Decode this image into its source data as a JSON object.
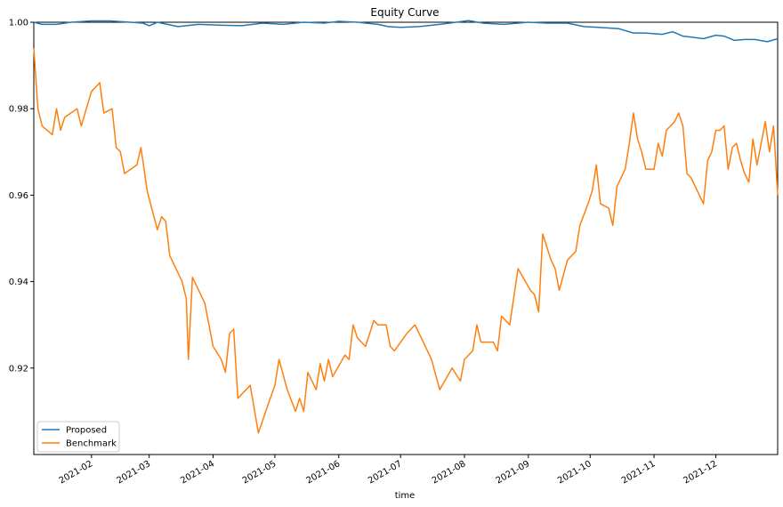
{
  "chart_data": {
    "type": "line",
    "title": "Equity Curve",
    "xlabel": "time",
    "ylabel": "",
    "x_range": [
      "2021-01-04",
      "2021-12-31"
    ],
    "ylim": [
      0.9,
      1.0
    ],
    "yticks": [
      0.92,
      0.94,
      0.96,
      0.98,
      1.0
    ],
    "ytick_labels": [
      "0.92",
      "0.94",
      "0.96",
      "0.98",
      "1.00"
    ],
    "xticks": [
      "2021-02-01",
      "2021-03-01",
      "2021-04-01",
      "2021-05-01",
      "2021-06-01",
      "2021-07-01",
      "2021-08-01",
      "2021-09-01",
      "2021-10-01",
      "2021-11-01",
      "2021-12-01"
    ],
    "xtick_labels": [
      "2021-02",
      "2021-03",
      "2021-04",
      "2021-05",
      "2021-06",
      "2021-07",
      "2021-08",
      "2021-09",
      "2021-10",
      "2021-11",
      "2021-12"
    ],
    "grid": false,
    "legend_position": "bottom-left",
    "series": [
      {
        "name": "Proposed",
        "color": "#1f77b4",
        "points": [
          [
            "2021-01-04",
            1.0
          ],
          [
            "2021-01-08",
            0.9995
          ],
          [
            "2021-01-15",
            0.9995
          ],
          [
            "2021-01-22",
            1.0
          ],
          [
            "2021-02-01",
            1.0003
          ],
          [
            "2021-02-10",
            1.0003
          ],
          [
            "2021-02-20",
            1.0
          ],
          [
            "2021-02-26",
            0.9998
          ],
          [
            "2021-03-01",
            0.9992
          ],
          [
            "2021-03-05",
            1.0
          ],
          [
            "2021-03-15",
            0.999
          ],
          [
            "2021-03-25",
            0.9995
          ],
          [
            "2021-04-05",
            0.9993
          ],
          [
            "2021-04-15",
            0.9992
          ],
          [
            "2021-04-25",
            0.9998
          ],
          [
            "2021-05-05",
            0.9995
          ],
          [
            "2021-05-15",
            1.0
          ],
          [
            "2021-05-25",
            0.9998
          ],
          [
            "2021-06-01",
            1.0002
          ],
          [
            "2021-06-10",
            1.0
          ],
          [
            "2021-06-20",
            0.9995
          ],
          [
            "2021-06-25",
            0.999
          ],
          [
            "2021-07-01",
            0.9988
          ],
          [
            "2021-07-10",
            0.999
          ],
          [
            "2021-07-20",
            0.9995
          ],
          [
            "2021-07-28",
            1.0
          ],
          [
            "2021-08-03",
            1.0004
          ],
          [
            "2021-08-10",
            0.9998
          ],
          [
            "2021-08-20",
            0.9995
          ],
          [
            "2021-09-01",
            1.0
          ],
          [
            "2021-09-10",
            0.9998
          ],
          [
            "2021-09-20",
            0.9998
          ],
          [
            "2021-09-28",
            0.999
          ],
          [
            "2021-10-05",
            0.9988
          ],
          [
            "2021-10-15",
            0.9985
          ],
          [
            "2021-10-22",
            0.9975
          ],
          [
            "2021-10-28",
            0.9975
          ],
          [
            "2021-11-05",
            0.9972
          ],
          [
            "2021-11-10",
            0.9978
          ],
          [
            "2021-11-15",
            0.9968
          ],
          [
            "2021-11-20",
            0.9965
          ],
          [
            "2021-11-25",
            0.9962
          ],
          [
            "2021-12-01",
            0.997
          ],
          [
            "2021-12-05",
            0.9968
          ],
          [
            "2021-12-10",
            0.9958
          ],
          [
            "2021-12-15",
            0.996
          ],
          [
            "2021-12-20",
            0.996
          ],
          [
            "2021-12-26",
            0.9955
          ],
          [
            "2021-12-31",
            0.9962
          ]
        ]
      },
      {
        "name": "Benchmark",
        "color": "#ff7f0e",
        "points": [
          [
            "2021-01-04",
            0.994
          ],
          [
            "2021-01-06",
            0.98
          ],
          [
            "2021-01-08",
            0.976
          ],
          [
            "2021-01-13",
            0.974
          ],
          [
            "2021-01-15",
            0.98
          ],
          [
            "2021-01-17",
            0.975
          ],
          [
            "2021-01-19",
            0.978
          ],
          [
            "2021-01-25",
            0.98
          ],
          [
            "2021-01-27",
            0.976
          ],
          [
            "2021-02-01",
            0.984
          ],
          [
            "2021-02-03",
            0.985
          ],
          [
            "2021-02-05",
            0.986
          ],
          [
            "2021-02-07",
            0.979
          ],
          [
            "2021-02-11",
            0.98
          ],
          [
            "2021-02-13",
            0.971
          ],
          [
            "2021-02-15",
            0.97
          ],
          [
            "2021-02-17",
            0.965
          ],
          [
            "2021-02-23",
            0.967
          ],
          [
            "2021-02-25",
            0.971
          ],
          [
            "2021-02-28",
            0.961
          ],
          [
            "2021-03-05",
            0.952
          ],
          [
            "2021-03-07",
            0.955
          ],
          [
            "2021-03-09",
            0.954
          ],
          [
            "2021-03-11",
            0.946
          ],
          [
            "2021-03-17",
            0.94
          ],
          [
            "2021-03-19",
            0.936
          ],
          [
            "2021-03-20",
            0.922
          ],
          [
            "2021-03-22",
            0.941
          ],
          [
            "2021-03-28",
            0.935
          ],
          [
            "2021-04-01",
            0.925
          ],
          [
            "2021-04-05",
            0.922
          ],
          [
            "2021-04-07",
            0.919
          ],
          [
            "2021-04-09",
            0.928
          ],
          [
            "2021-04-11",
            0.929
          ],
          [
            "2021-04-13",
            0.913
          ],
          [
            "2021-04-19",
            0.916
          ],
          [
            "2021-04-23",
            0.905
          ],
          [
            "2021-04-28",
            0.912
          ],
          [
            "2021-05-01",
            0.916
          ],
          [
            "2021-05-03",
            0.922
          ],
          [
            "2021-05-07",
            0.915
          ],
          [
            "2021-05-11",
            0.91
          ],
          [
            "2021-05-13",
            0.913
          ],
          [
            "2021-05-15",
            0.91
          ],
          [
            "2021-05-17",
            0.919
          ],
          [
            "2021-05-21",
            0.915
          ],
          [
            "2021-05-23",
            0.921
          ],
          [
            "2021-05-25",
            0.917
          ],
          [
            "2021-05-27",
            0.922
          ],
          [
            "2021-05-29",
            0.918
          ],
          [
            "2021-06-04",
            0.923
          ],
          [
            "2021-06-06",
            0.922
          ],
          [
            "2021-06-08",
            0.93
          ],
          [
            "2021-06-10",
            0.927
          ],
          [
            "2021-06-14",
            0.925
          ],
          [
            "2021-06-16",
            0.928
          ],
          [
            "2021-06-18",
            0.931
          ],
          [
            "2021-06-20",
            0.93
          ],
          [
            "2021-06-24",
            0.93
          ],
          [
            "2021-06-26",
            0.925
          ],
          [
            "2021-06-28",
            0.924
          ],
          [
            "2021-07-04",
            0.928
          ],
          [
            "2021-07-08",
            0.93
          ],
          [
            "2021-07-12",
            0.926
          ],
          [
            "2021-07-16",
            0.922
          ],
          [
            "2021-07-20",
            0.915
          ],
          [
            "2021-07-26",
            0.92
          ],
          [
            "2021-07-30",
            0.917
          ],
          [
            "2021-08-01",
            0.922
          ],
          [
            "2021-08-05",
            0.924
          ],
          [
            "2021-08-07",
            0.93
          ],
          [
            "2021-08-09",
            0.926
          ],
          [
            "2021-08-15",
            0.926
          ],
          [
            "2021-08-17",
            0.924
          ],
          [
            "2021-08-19",
            0.932
          ],
          [
            "2021-08-23",
            0.93
          ],
          [
            "2021-08-27",
            0.943
          ],
          [
            "2021-09-02",
            0.938
          ],
          [
            "2021-09-04",
            0.937
          ],
          [
            "2021-09-06",
            0.933
          ],
          [
            "2021-09-08",
            0.951
          ],
          [
            "2021-09-10",
            0.948
          ],
          [
            "2021-09-12",
            0.945
          ],
          [
            "2021-09-14",
            0.943
          ],
          [
            "2021-09-16",
            0.938
          ],
          [
            "2021-09-20",
            0.945
          ],
          [
            "2021-09-24",
            0.947
          ],
          [
            "2021-09-26",
            0.953
          ],
          [
            "2021-09-30",
            0.958
          ],
          [
            "2021-10-02",
            0.961
          ],
          [
            "2021-10-04",
            0.967
          ],
          [
            "2021-10-06",
            0.958
          ],
          [
            "2021-10-10",
            0.957
          ],
          [
            "2021-10-12",
            0.953
          ],
          [
            "2021-10-14",
            0.962
          ],
          [
            "2021-10-18",
            0.966
          ],
          [
            "2021-10-20",
            0.972
          ],
          [
            "2021-10-22",
            0.979
          ],
          [
            "2021-10-24",
            0.973
          ],
          [
            "2021-10-26",
            0.97
          ],
          [
            "2021-10-28",
            0.966
          ],
          [
            "2021-11-01",
            0.966
          ],
          [
            "2021-11-03",
            0.972
          ],
          [
            "2021-11-05",
            0.969
          ],
          [
            "2021-11-07",
            0.975
          ],
          [
            "2021-11-11",
            0.977
          ],
          [
            "2021-11-13",
            0.979
          ],
          [
            "2021-11-15",
            0.976
          ],
          [
            "2021-11-17",
            0.965
          ],
          [
            "2021-11-19",
            0.964
          ],
          [
            "2021-11-21",
            0.962
          ],
          [
            "2021-11-23",
            0.96
          ],
          [
            "2021-11-25",
            0.958
          ],
          [
            "2021-11-27",
            0.968
          ],
          [
            "2021-11-29",
            0.97
          ],
          [
            "2021-12-01",
            0.975
          ],
          [
            "2021-12-03",
            0.975
          ],
          [
            "2021-12-05",
            0.976
          ],
          [
            "2021-12-07",
            0.966
          ],
          [
            "2021-12-09",
            0.971
          ],
          [
            "2021-12-11",
            0.972
          ],
          [
            "2021-12-13",
            0.968
          ],
          [
            "2021-12-15",
            0.965
          ],
          [
            "2021-12-17",
            0.963
          ],
          [
            "2021-12-19",
            0.973
          ],
          [
            "2021-12-21",
            0.967
          ],
          [
            "2021-12-23",
            0.972
          ],
          [
            "2021-12-25",
            0.977
          ],
          [
            "2021-12-27",
            0.97
          ],
          [
            "2021-12-29",
            0.976
          ],
          [
            "2021-12-31",
            0.96
          ]
        ]
      }
    ]
  }
}
